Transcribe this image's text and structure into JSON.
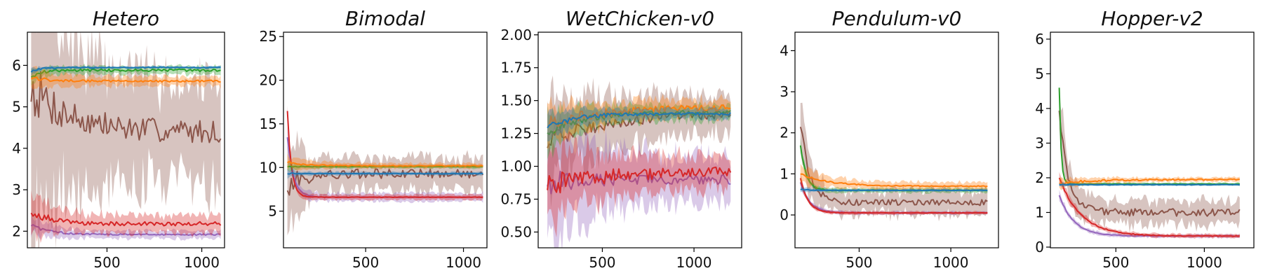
{
  "colors": {
    "blue": "#1f77b4",
    "orange": "#ff7f0e",
    "green": "#2ca02c",
    "red": "#d62728",
    "purple": "#9467bd",
    "brown": "#8c564b"
  },
  "chart_data": [
    {
      "type": "line",
      "title": "Hetero",
      "xlim": [
        80,
        1120
      ],
      "ylim": [
        1.6,
        6.8
      ],
      "xticks": [
        500,
        1000
      ],
      "yticks": [
        2,
        3,
        4,
        5,
        6
      ],
      "x_range": [
        100,
        1100
      ],
      "series": [
        {
          "color": "blue",
          "start": 5.85,
          "end": 5.95,
          "tau": 0.05,
          "noise": 0.02,
          "band": 0.03
        },
        {
          "color": "orange",
          "start": 5.7,
          "end": 5.62,
          "tau": 0.1,
          "noise": 0.04,
          "band": 0.12
        },
        {
          "color": "green",
          "start": 5.75,
          "end": 5.88,
          "tau": 0.05,
          "noise": 0.05,
          "band": 0.1
        },
        {
          "color": "red",
          "start": 2.5,
          "end": 2.18,
          "tau": 0.1,
          "noise": 0.08,
          "band": 0.22
        },
        {
          "color": "purple",
          "start": 2.15,
          "end": 1.92,
          "tau": 0.1,
          "noise": 0.03,
          "band": 0.1
        },
        {
          "color": "brown",
          "start": 5.5,
          "end": 4.4,
          "tau": 0.2,
          "noise": 0.45,
          "band": 1.25
        }
      ]
    },
    {
      "type": "line",
      "title": "Bimodal",
      "xlim": [
        80,
        1120
      ],
      "ylim": [
        0.8,
        25.5
      ],
      "xticks": [
        500,
        1000
      ],
      "yticks": [
        5,
        10,
        15,
        20,
        25
      ],
      "x_range": [
        100,
        1100
      ],
      "series": [
        {
          "color": "blue",
          "start": 9.3,
          "end": 9.3,
          "tau": 0.05,
          "noise": 0.05,
          "band": 0.2
        },
        {
          "color": "orange",
          "start": 10.6,
          "end": 10.2,
          "tau": 0.1,
          "noise": 0.1,
          "band": 0.3
        },
        {
          "color": "green",
          "start": 10.1,
          "end": 10.1,
          "tau": 0.05,
          "noise": 0.05,
          "band": 0.2
        },
        {
          "color": "red",
          "start": 16.5,
          "end": 6.6,
          "tau": 0.02,
          "noise": 0.05,
          "band": 0.3
        },
        {
          "color": "purple",
          "start": 13.5,
          "end": 6.6,
          "tau": 0.03,
          "noise": 0.05,
          "band": 0.5
        },
        {
          "color": "brown",
          "start": 8.0,
          "end": 9.3,
          "tau": 0.1,
          "noise": 0.9,
          "band": 1.8
        }
      ]
    },
    {
      "type": "line",
      "title": "WetChicken-v0",
      "xlim": [
        150,
        1260
      ],
      "ylim": [
        0.38,
        2.02
      ],
      "xticks": [
        500,
        1000
      ],
      "yticks": [
        0.5,
        0.75,
        1.0,
        1.25,
        1.5,
        1.75,
        2.0
      ],
      "ytick_labels": [
        "0.50",
        "0.75",
        "1.00",
        "1.25",
        "1.50",
        "1.75",
        "2.00"
      ],
      "x_range": [
        200,
        1200
      ],
      "series": [
        {
          "color": "blue",
          "start": 1.3,
          "end": 1.4,
          "tau": 0.15,
          "noise": 0.02,
          "band": 0.04
        },
        {
          "color": "orange",
          "start": 1.32,
          "end": 1.45,
          "tau": 0.3,
          "noise": 0.035,
          "band": 0.06
        },
        {
          "color": "green",
          "start": 1.27,
          "end": 1.41,
          "tau": 0.2,
          "noise": 0.03,
          "band": 0.06
        },
        {
          "color": "red",
          "start": 0.85,
          "end": 0.96,
          "tau": 0.3,
          "noise": 0.06,
          "band": 0.12
        },
        {
          "color": "purple",
          "start": 0.88,
          "end": 0.9,
          "tau": 0.2,
          "noise": 0.06,
          "band": 0.2
        },
        {
          "color": "brown",
          "start": 1.17,
          "end": 1.4,
          "tau": 0.3,
          "noise": 0.05,
          "band": 0.15
        }
      ]
    },
    {
      "type": "line",
      "title": "Pendulum-v0",
      "xlim": [
        150,
        1260
      ],
      "ylim": [
        -0.8,
        4.45
      ],
      "xticks": [
        500,
        1000
      ],
      "yticks": [
        0,
        1,
        2,
        3,
        4
      ],
      "x_range": [
        180,
        1200
      ],
      "series": [
        {
          "color": "blue",
          "start": 0.62,
          "end": 0.6,
          "tau": 0.05,
          "noise": 0.01,
          "band": 0.03
        },
        {
          "color": "orange",
          "start": 1.0,
          "end": 0.7,
          "tau": 0.15,
          "noise": 0.02,
          "band": 0.1
        },
        {
          "color": "green",
          "start": 1.7,
          "end": 0.6,
          "tau": 0.03,
          "noise": 0.02,
          "band": 0.06
        },
        {
          "color": "red",
          "start": 0.9,
          "end": 0.05,
          "tau": 0.04,
          "noise": 0.01,
          "band": 0.04
        },
        {
          "color": "purple",
          "start": 0.8,
          "end": 0.05,
          "tau": 0.05,
          "noise": 0.01,
          "band": 0.04
        },
        {
          "color": "brown",
          "start": 2.2,
          "end": 0.3,
          "tau": 0.05,
          "noise": 0.12,
          "band": 0.3
        }
      ]
    },
    {
      "type": "line",
      "title": "Hopper-v2",
      "xlim": [
        130,
        1280
      ],
      "ylim": [
        -0.02,
        6.2
      ],
      "xticks": [
        500,
        1000
      ],
      "yticks": [
        0,
        1,
        2,
        3,
        4,
        5,
        6
      ],
      "x_range": [
        180,
        1200
      ],
      "series": [
        {
          "color": "blue",
          "start": 1.8,
          "end": 1.8,
          "tau": 0.05,
          "noise": 0.01,
          "band": 0.03
        },
        {
          "color": "orange",
          "start": 1.85,
          "end": 1.95,
          "tau": 0.2,
          "noise": 0.03,
          "band": 0.06
        },
        {
          "color": "green",
          "start": 4.6,
          "end": 1.82,
          "tau": 0.01,
          "noise": 0.01,
          "band": 0.04
        },
        {
          "color": "red",
          "start": 2.0,
          "end": 0.32,
          "tau": 0.12,
          "noise": 0.02,
          "band": 0.06
        },
        {
          "color": "purple",
          "start": 1.5,
          "end": 0.32,
          "tau": 0.08,
          "noise": 0.015,
          "band": 0.05
        },
        {
          "color": "brown",
          "start": 4.0,
          "end": 1.0,
          "tau": 0.05,
          "noise": 0.18,
          "band": 0.35
        }
      ]
    }
  ]
}
